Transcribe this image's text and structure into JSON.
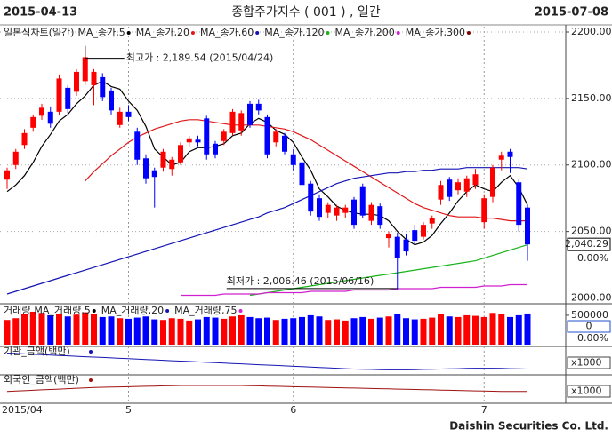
{
  "header": {
    "start": "2015-04-13",
    "title": "종합주가지수 ( 001 ) , 일간",
    "end": "2015-07-08"
  },
  "footer": "Daishin Securities Co. Ltd.",
  "chart_data": [
    {
      "type": "candlestick",
      "title": "일본식차트(일간)",
      "categories": [
        "2015/04",
        null,
        null,
        null,
        null,
        null,
        null,
        null,
        null,
        null,
        null,
        null,
        null,
        null,
        "5",
        null,
        null,
        null,
        null,
        null,
        null,
        null,
        null,
        null,
        null,
        null,
        null,
        null,
        null,
        null,
        null,
        null,
        null,
        "6",
        null,
        null,
        null,
        null,
        null,
        null,
        null,
        null,
        null,
        null,
        null,
        null,
        null,
        null,
        null,
        null,
        null,
        null,
        null,
        null,
        null,
        "7",
        null,
        null,
        null,
        null,
        null
      ],
      "open": [
        2089,
        2100,
        2115,
        2128,
        2137,
        2140,
        2140,
        2158,
        2155,
        2163,
        2160,
        2166,
        2156,
        2130,
        2140,
        2125,
        2105,
        2096,
        2098,
        2097,
        2102,
        2117,
        2119,
        2135,
        2116,
        2118,
        2124,
        2126,
        2146,
        2146,
        2136,
        2117,
        2122,
        2108,
        2102,
        2086,
        2075,
        2064,
        2062,
        2064,
        2074,
        2084,
        2058,
        2069,
        2045,
        2046,
        2044,
        2051,
        2046,
        2056,
        2074,
        2089,
        2081,
        2080,
        2085,
        2057,
        2076,
        2104,
        2110,
        2087,
        2068
      ],
      "high": [
        2098,
        2112,
        2127,
        2138,
        2146,
        2144,
        2168,
        2160,
        2172,
        2189.54,
        2172,
        2169,
        2158,
        2143,
        2145,
        2128,
        2108,
        2098,
        2112,
        2106,
        2117,
        2122,
        2122,
        2137,
        2118,
        2127,
        2142,
        2141,
        2148,
        2149,
        2138,
        2127,
        2124,
        2112,
        2104,
        2088,
        2078,
        2072,
        2070,
        2070,
        2076,
        2086,
        2072,
        2071,
        2050,
        2049,
        2048,
        2055,
        2057,
        2062,
        2088,
        2091,
        2090,
        2092,
        2097,
        2078,
        2100,
        2110,
        2112,
        2090,
        2070
      ],
      "low": [
        2082,
        2097,
        2112,
        2125,
        2134,
        2128,
        2138,
        2139,
        2152,
        2160,
        2145,
        2148,
        2138,
        2128,
        2133,
        2100,
        2086,
        2068,
        2095,
        2092,
        2100,
        2114,
        2114,
        2104,
        2105,
        2115,
        2122,
        2122,
        2128,
        2138,
        2105,
        2114,
        2108,
        2096,
        2082,
        2062,
        2058,
        2060,
        2058,
        2060,
        2052,
        2060,
        2055,
        2052,
        2038,
        2006.46,
        2032,
        2040,
        2044,
        2052,
        2070,
        2073,
        2078,
        2076,
        2082,
        2052,
        2072,
        2096,
        2094,
        2050,
        2028
      ],
      "close": [
        2096,
        2110,
        2124,
        2136,
        2143,
        2131,
        2165,
        2142,
        2170,
        2181,
        2170,
        2151,
        2141,
        2140,
        2136,
        2104,
        2090,
        2091,
        2110,
        2104,
        2115,
        2120,
        2117,
        2108,
        2108,
        2125,
        2140,
        2139,
        2130,
        2141,
        2108,
        2125,
        2110,
        2100,
        2085,
        2065,
        2061,
        2070,
        2068,
        2068,
        2055,
        2062,
        2070,
        2055,
        2048,
        2030,
        2035,
        2043,
        2055,
        2060,
        2085,
        2076,
        2087,
        2090,
        2093,
        2075,
        2098,
        2107,
        2106,
        2055,
        2040.29
      ],
      "up_color": "#ff0000",
      "down_color": "#0000ff",
      "series": [
        {
          "name": "MA_종가,5",
          "color": "#000000",
          "values": [
            2080,
            2085,
            2092,
            2102,
            2114,
            2123,
            2133,
            2138,
            2146,
            2152,
            2160,
            2163,
            2159,
            2157,
            2148,
            2141,
            2129,
            2112,
            2106,
            2100,
            2102,
            2110,
            2113,
            2113,
            2114,
            2116,
            2122,
            2124,
            2131,
            2135,
            2132,
            2126,
            2123,
            2117,
            2106,
            2096,
            2082,
            2076,
            2069,
            2066,
            2064,
            2063,
            2063,
            2062,
            2058,
            2050,
            2044,
            2040,
            2042,
            2047,
            2056,
            2064,
            2073,
            2080,
            2085,
            2082,
            2080,
            2087,
            2092,
            2083,
            2070
          ]
        },
        {
          "name": "MA_종가,20",
          "color": "#e01818",
          "values": [
            null,
            null,
            null,
            null,
            null,
            null,
            null,
            null,
            null,
            2088,
            2095,
            2101,
            2107,
            2112,
            2117,
            2121,
            2124,
            2127,
            2129,
            2131,
            2133,
            2134,
            2134,
            2133,
            2132,
            2131,
            2130,
            2130,
            2130,
            2130,
            2129,
            2128,
            2127,
            2125,
            2122,
            2119,
            2115,
            2111,
            2107,
            2103,
            2099,
            2095,
            2091,
            2087,
            2083,
            2079,
            2075,
            2071,
            2068,
            2066,
            2064,
            2062,
            2061,
            2061,
            2061,
            2060,
            2060,
            2059,
            2058,
            2058,
            2058
          ]
        },
        {
          "name": "MA_종가,60",
          "color": "#1414b4",
          "values": [
            2003,
            2005,
            2007,
            2009,
            2011,
            2013,
            2015,
            2017,
            2019,
            2021,
            2023,
            2025,
            2027,
            2029,
            2031,
            2033,
            2035,
            2037,
            2039,
            2041,
            2043,
            2045,
            2047,
            2049,
            2051,
            2053,
            2055,
            2057,
            2059,
            2061,
            2064,
            2066,
            2068,
            2071,
            2074,
            2077,
            2080,
            2083,
            2086,
            2088,
            2090,
            2091,
            2092,
            2093,
            2094,
            2094,
            2095,
            2095,
            2096,
            2096,
            2097,
            2097,
            2097,
            2098,
            2098,
            2098,
            2098,
            2098,
            2098,
            2098,
            2097
          ]
        },
        {
          "name": "MA_종가,120",
          "color": "#18b418",
          "values": [
            null,
            null,
            null,
            null,
            null,
            null,
            null,
            null,
            null,
            null,
            null,
            null,
            null,
            null,
            null,
            null,
            null,
            null,
            null,
            null,
            null,
            null,
            null,
            null,
            null,
            null,
            null,
            null,
            2002,
            2003,
            2004,
            2005,
            2006,
            2007,
            2008,
            2009,
            2010,
            2011,
            2012,
            2013,
            2014,
            2015,
            2016,
            2017,
            2018,
            2019,
            2020,
            2021,
            2022,
            2023,
            2024,
            2025,
            2026,
            2027,
            2028,
            2030,
            2032,
            2034,
            2036,
            2038,
            2040
          ]
        },
        {
          "name": "MA_종가,200",
          "color": "#d020d0",
          "values": [
            null,
            null,
            null,
            null,
            null,
            null,
            null,
            null,
            null,
            null,
            null,
            null,
            null,
            null,
            null,
            null,
            null,
            null,
            null,
            null,
            2002,
            2002,
            2002,
            2002,
            2002,
            2003,
            2003,
            2003,
            2003,
            2003,
            2004,
            2004,
            2004,
            2004,
            2004,
            2005,
            2005,
            2005,
            2005,
            2005,
            2006,
            2006,
            2006,
            2006,
            2006,
            2007,
            2007,
            2007,
            2007,
            2007,
            2008,
            2008,
            2008,
            2008,
            2008,
            2009,
            2009,
            2009,
            2010,
            2010,
            2010
          ]
        }
      ],
      "extra_legend": [
        {
          "name": "MA_종가,300",
          "color": "#800000"
        }
      ],
      "ylim": [
        1997,
        2204
      ],
      "yticks": [
        {
          "value": 2000,
          "label": "2000.00"
        },
        {
          "value": 2050,
          "label": "2050.00"
        },
        {
          "value": 2100,
          "label": "2100.00"
        },
        {
          "value": 2150,
          "label": "2150.00"
        },
        {
          "value": 2200,
          "label": "2200.00"
        }
      ],
      "grid": true,
      "high_note": "최고가 : 2,189.54 (2015/04/24)",
      "low_note": "최저가 : 2,006.46 (2015/06/16)",
      "last_label": "2,040.29",
      "change_label": "0.00%"
    },
    {
      "type": "bar",
      "title": "거래량",
      "values": [
        420000,
        450000,
        520000,
        560000,
        540000,
        500000,
        530000,
        480000,
        510000,
        550000,
        520000,
        470000,
        480000,
        450000,
        440000,
        460000,
        480000,
        430000,
        420000,
        450000,
        440000,
        410000,
        430000,
        470000,
        460000,
        440000,
        480000,
        500000,
        470000,
        450000,
        460000,
        420000,
        440000,
        450000,
        470000,
        500000,
        480000,
        420000,
        430000,
        410000,
        450000,
        470000,
        440000,
        460000,
        480000,
        520000,
        450000,
        430000,
        440000,
        460000,
        520000,
        480000,
        470000,
        500000,
        490000,
        470000,
        540000,
        520000,
        470000,
        500000,
        530000
      ],
      "legend": [
        {
          "name": "MA_거래량,5",
          "color": "#000000"
        },
        {
          "name": "MA_거래량,20",
          "color": "#1414b4"
        },
        {
          "name": "MA_거래량,75",
          "color": "#d020d0"
        }
      ],
      "ylim": [
        0,
        650000
      ],
      "yticks": [
        500000
      ],
      "last_label": "0",
      "change_label": "0.00%"
    },
    {
      "type": "line",
      "title": "기관_금액(백만)",
      "color": "#1414b4",
      "values": [
        100,
        98,
        96,
        94,
        92,
        90,
        88,
        86,
        84,
        82,
        80,
        78,
        76,
        74,
        72,
        70,
        68,
        66,
        64,
        62,
        60,
        58,
        56,
        54,
        52,
        50,
        48,
        46,
        44,
        42,
        40,
        38,
        36,
        34,
        32,
        30,
        28,
        26,
        24,
        22,
        20,
        19,
        18,
        17,
        16,
        16,
        16,
        17,
        18,
        19,
        20,
        21,
        22,
        23,
        24,
        24,
        24,
        23,
        22,
        21,
        20
      ],
      "ylim": [
        0,
        120
      ],
      "unit_label": "x1000"
    },
    {
      "type": "line",
      "title": "외국인_금액(백만)",
      "color": "#a01010",
      "values": [
        50,
        52,
        54,
        56,
        58,
        60,
        62,
        64,
        66,
        68,
        70,
        71,
        72,
        73,
        74,
        75,
        76,
        77,
        78,
        79,
        80,
        80,
        80,
        80,
        80,
        80,
        80,
        80,
        79,
        78,
        77,
        76,
        75,
        74,
        73,
        72,
        71,
        70,
        69,
        68,
        67,
        66,
        65,
        64,
        63,
        62,
        61,
        60,
        59,
        58,
        57,
        56,
        55,
        54,
        53,
        52,
        51,
        50,
        50,
        50,
        50
      ],
      "ylim": [
        0,
        120
      ],
      "unit_label": "x1000"
    }
  ]
}
